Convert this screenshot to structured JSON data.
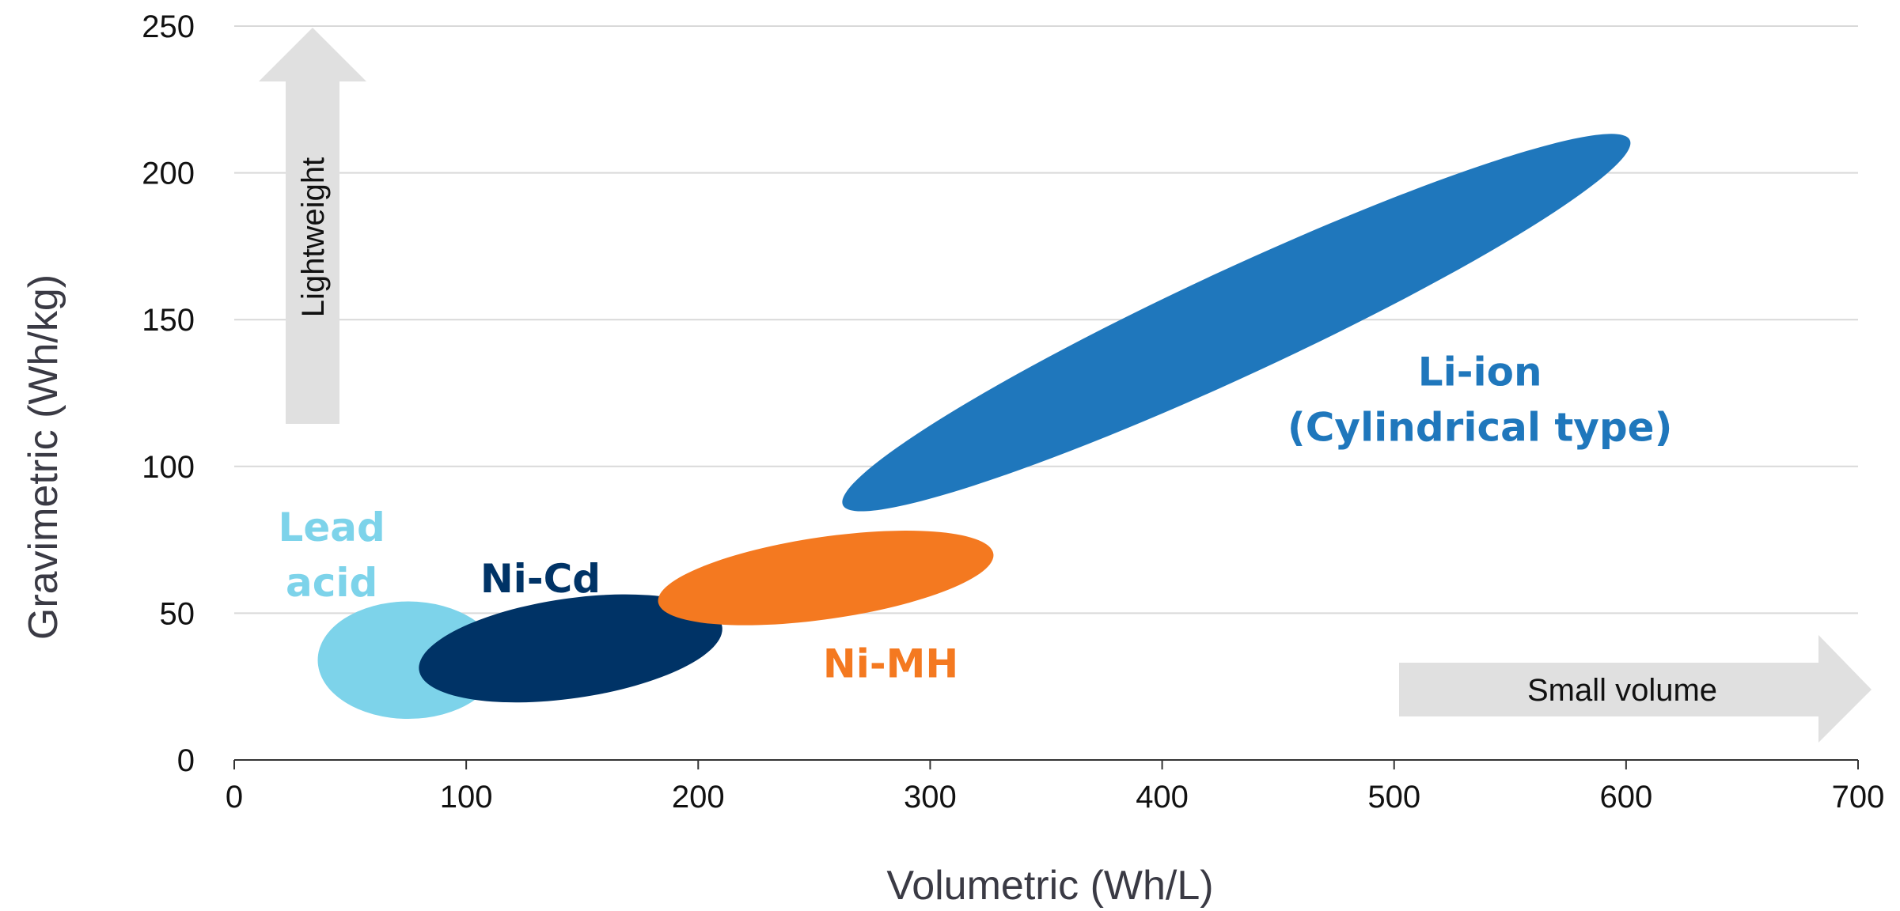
{
  "chart_data": {
    "type": "scatter",
    "title": "",
    "xlabel": "Volumetric (Wh/L)",
    "ylabel": "Gravimetric (Wh/kg)",
    "xlim": [
      0,
      700
    ],
    "ylim": [
      0,
      250
    ],
    "x_ticks": [
      0,
      100,
      200,
      300,
      400,
      500,
      600,
      700
    ],
    "y_ticks": [
      0,
      50,
      100,
      150,
      200,
      250
    ],
    "grid": "horizontal",
    "series": [
      {
        "name": "Lead acid",
        "label_lines": [
          "Lead",
          "acid"
        ],
        "color": "#7DD3EA",
        "label_color": "#7DD3EA",
        "region": {
          "cx": 75,
          "cy": 34,
          "rx": 39,
          "ry": 20,
          "rotation_deg": 0
        },
        "label_at": [
          42,
          70
        ]
      },
      {
        "name": "Ni-Cd",
        "label_lines": [
          "Ni-Cd"
        ],
        "color": "#003366",
        "label_color": "#003366",
        "region": {
          "cx": 145,
          "cy": 38,
          "rx": 66,
          "ry": 17,
          "rotation_deg": 8.2
        },
        "label_at": [
          132,
          62
        ]
      },
      {
        "name": "Ni-MH",
        "label_lines": [
          "Ni-MH"
        ],
        "color": "#F47920",
        "label_color": "#F47920",
        "region": {
          "cx": 255,
          "cy": 62,
          "rx": 73,
          "ry": 14,
          "rotation_deg": 8.2
        },
        "label_at": [
          283,
          33
        ]
      },
      {
        "name": "Li-ion (Cylindrical type)",
        "label_lines": [
          "Li-ion",
          "(Cylindrical type)"
        ],
        "color": "#1F77BC",
        "label_color": "#1F77BC",
        "region": {
          "cx": 432,
          "cy": 149,
          "rx": 187,
          "ry": 18,
          "rotation_deg": 24.9
        },
        "label_at": [
          537,
          123
        ]
      }
    ],
    "annotations": [
      {
        "text": "Lightweight",
        "direction": "up"
      },
      {
        "text": "Small volume",
        "direction": "right"
      }
    ]
  }
}
